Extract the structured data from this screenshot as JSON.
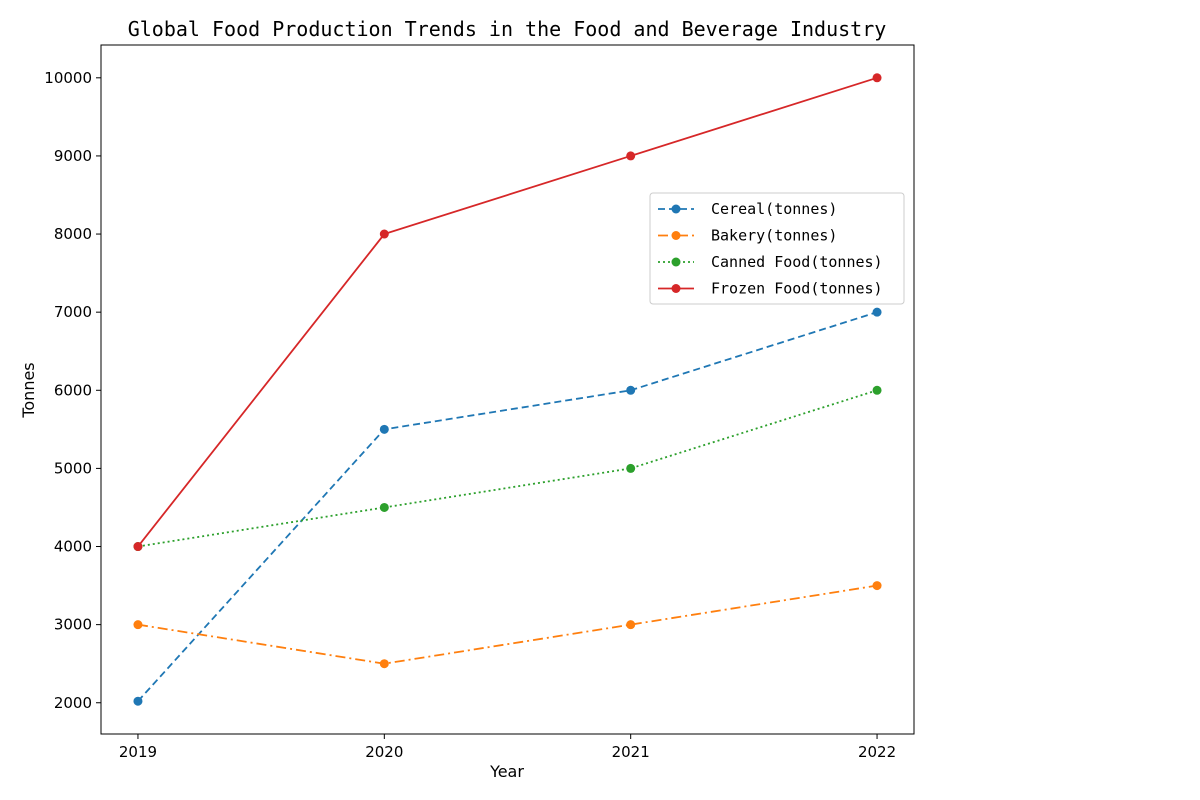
{
  "chart_data": {
    "type": "line",
    "title": "Global Food Production Trends in the Food and Beverage Industry",
    "xlabel": "Year",
    "ylabel": "Tonnes",
    "x": [
      "2019",
      "2020",
      "2021",
      "2022"
    ],
    "xlim": [
      2018.85,
      2022.15
    ],
    "ylim": [
      1600,
      10420
    ],
    "yticks": [
      2000,
      3000,
      4000,
      5000,
      6000,
      7000,
      8000,
      9000,
      10000
    ],
    "grid": false,
    "legend_position": "upper right",
    "series": [
      {
        "name": "Cereal(tonnes)",
        "values": [
          2020,
          5500,
          6000,
          7000
        ],
        "color": "#1f77b4",
        "linestyle": "dashed",
        "marker": "circle"
      },
      {
        "name": "Bakery(tonnes)",
        "values": [
          3000,
          2500,
          3000,
          3500
        ],
        "color": "#ff7f0e",
        "linestyle": "dashdot",
        "marker": "circle"
      },
      {
        "name": "Canned Food(tonnes)",
        "values": [
          4000,
          4500,
          5000,
          6000
        ],
        "color": "#2ca02c",
        "linestyle": "dotted",
        "marker": "circle"
      },
      {
        "name": "Frozen Food(tonnes)",
        "values": [
          4000,
          8000,
          9000,
          10000
        ],
        "color": "#d62728",
        "linestyle": "solid",
        "marker": "circle"
      }
    ]
  }
}
